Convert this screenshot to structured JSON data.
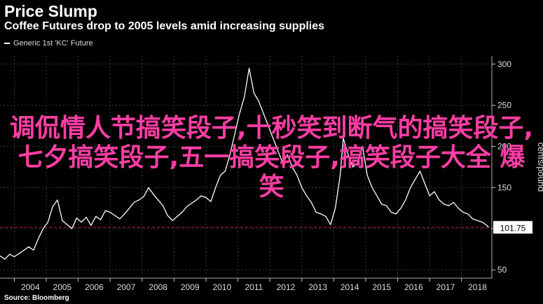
{
  "header": {
    "title": "Price Slump",
    "subtitle": "Coffee Futures drop to 2005 levels amid increasing supplies"
  },
  "source": "Source: Bloomberg",
  "overlay_text": "调侃情人节搞笑段子,十秒笑到断气的搞笑段子,七夕搞笑段子,五一搞笑段子,搞笑段子大全 爆笑",
  "colors": {
    "line": "#ffffff",
    "reference": "#c2185b",
    "overlay": "#ff3ea5",
    "background": "#000000"
  },
  "chart_data": {
    "type": "line",
    "title": "Price Slump",
    "subtitle": "Coffee Futures drop to 2005 levels amid increasing supplies",
    "ylabel": "cents/pound",
    "xlabel": "",
    "ylim": [
      40,
      310
    ],
    "xlim": [
      2003.55,
      2018.95
    ],
    "yticks": [
      50,
      100,
      150,
      200,
      250,
      300
    ],
    "xticks": [
      "2004",
      "2005",
      "2006",
      "2007",
      "2008",
      "2009",
      "2010",
      "2011",
      "2012",
      "2013",
      "2014",
      "2015",
      "2016",
      "2017",
      "2018"
    ],
    "grid": true,
    "legend_position": "top-left",
    "series": [
      {
        "name": "Generic 1st 'KC' Future",
        "last_value_label": "101.75",
        "reference_value": 101.75,
        "x": [
          2003.55,
          2003.7,
          2003.85,
          2004.0,
          2004.15,
          2004.3,
          2004.45,
          2004.6,
          2004.75,
          2004.9,
          2005.05,
          2005.2,
          2005.35,
          2005.5,
          2005.65,
          2005.8,
          2005.95,
          2006.1,
          2006.25,
          2006.4,
          2006.55,
          2006.7,
          2006.85,
          2007.0,
          2007.15,
          2007.3,
          2007.45,
          2007.6,
          2007.75,
          2007.9,
          2008.05,
          2008.2,
          2008.35,
          2008.5,
          2008.65,
          2008.8,
          2008.95,
          2009.1,
          2009.25,
          2009.4,
          2009.55,
          2009.7,
          2009.85,
          2010.0,
          2010.15,
          2010.3,
          2010.45,
          2010.6,
          2010.75,
          2010.9,
          2011.05,
          2011.2,
          2011.35,
          2011.5,
          2011.65,
          2011.8,
          2011.95,
          2012.1,
          2012.25,
          2012.4,
          2012.55,
          2012.7,
          2012.85,
          2013.0,
          2013.15,
          2013.3,
          2013.45,
          2013.6,
          2013.75,
          2013.9,
          2014.05,
          2014.2,
          2014.3,
          2014.45,
          2014.6,
          2014.75,
          2014.9,
          2015.05,
          2015.2,
          2015.35,
          2015.5,
          2015.65,
          2015.8,
          2015.95,
          2016.1,
          2016.25,
          2016.4,
          2016.55,
          2016.7,
          2016.85,
          2017.0,
          2017.15,
          2017.3,
          2017.45,
          2017.6,
          2017.75,
          2017.9,
          2018.05,
          2018.2,
          2018.35,
          2018.5,
          2018.65,
          2018.8,
          2018.85
        ],
        "values": [
          67,
          63,
          69,
          66,
          70,
          74,
          78,
          74,
          88,
          100,
          108,
          127,
          135,
          110,
          105,
          100,
          113,
          108,
          114,
          104,
          115,
          111,
          122,
          120,
          116,
          112,
          118,
          125,
          132,
          135,
          139,
          150,
          142,
          135,
          128,
          116,
          110,
          115,
          120,
          127,
          131,
          135,
          140,
          138,
          133,
          150,
          165,
          170,
          190,
          215,
          240,
          260,
          295,
          265,
          255,
          240,
          225,
          210,
          195,
          180,
          190,
          175,
          165,
          150,
          140,
          132,
          120,
          118,
          115,
          105,
          125,
          165,
          210,
          190,
          175,
          180,
          200,
          165,
          150,
          140,
          130,
          128,
          120,
          118,
          125,
          135,
          150,
          160,
          170,
          155,
          140,
          145,
          135,
          130,
          128,
          132,
          125,
          120,
          118,
          112,
          110,
          108,
          104,
          101.75
        ]
      }
    ]
  }
}
